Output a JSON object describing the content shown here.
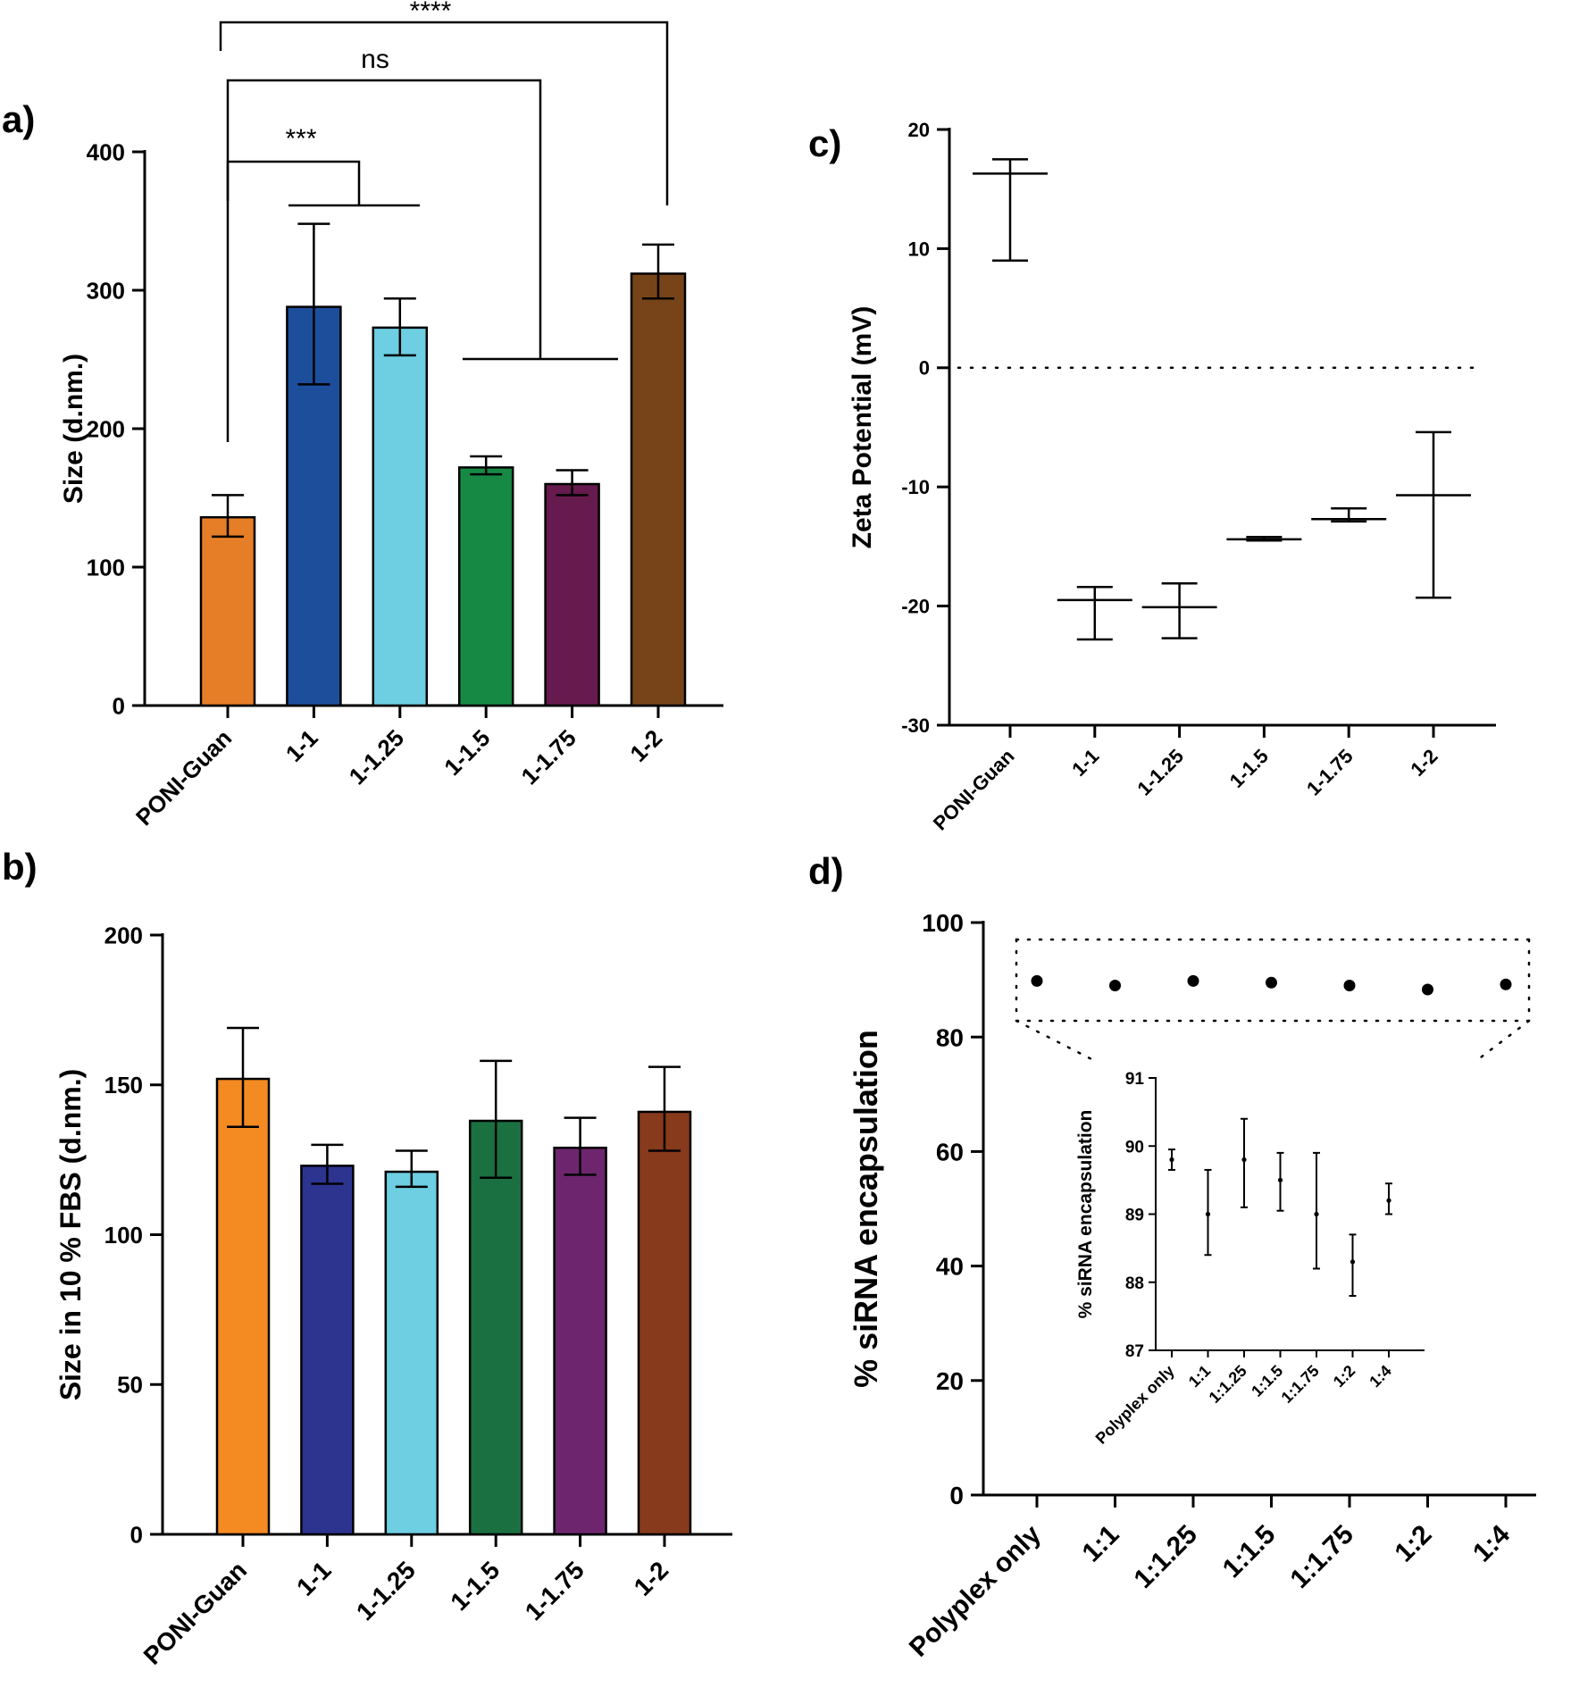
{
  "panel_labels": [
    "a)",
    "b)",
    "c)",
    "d)"
  ],
  "chart_data": [
    {
      "panel": "a)",
      "type": "bar",
      "ylabel": "Size (d.nm.)",
      "ylim": [
        0,
        400
      ],
      "yticks": [
        0,
        100,
        200,
        300,
        400
      ],
      "categories": [
        "PONI-Guan",
        "1-1",
        "1-1.25",
        "1-1.5",
        "1-1.75",
        "1-2"
      ],
      "values": [
        136,
        288,
        273,
        172,
        160,
        312
      ],
      "err_low": [
        122,
        232,
        253,
        167,
        152,
        294
      ],
      "err_high": [
        152,
        348,
        294,
        180,
        170,
        333
      ],
      "colors": [
        "#e67e28",
        "#1c4e9c",
        "#6ecee2",
        "#168a44",
        "#661a4d",
        "#774419"
      ],
      "significance": [
        {
          "label": "***"
        },
        {
          "label": "ns"
        },
        {
          "label": "****"
        }
      ]
    },
    {
      "panel": "b)",
      "type": "bar",
      "ylabel": "Size in 10 % FBS (d.nm.)",
      "ylim": [
        0,
        200
      ],
      "yticks": [
        0,
        50,
        100,
        150,
        200
      ],
      "categories": [
        "PONI-Guan",
        "1-1",
        "1-1.25",
        "1-1.5",
        "1-1.75",
        "1-2"
      ],
      "values": [
        152,
        123,
        121,
        138,
        129,
        141
      ],
      "err_low": [
        136,
        117,
        116,
        119,
        120,
        128
      ],
      "err_high": [
        169,
        130,
        128,
        158,
        139,
        156
      ],
      "colors": [
        "#f48a22",
        "#2c3490",
        "#6ecee2",
        "#1a7040",
        "#6d266e",
        "#873a1c"
      ]
    },
    {
      "panel": "c)",
      "type": "scatter",
      "ylabel": "Zeta Potential (mV)",
      "ylim": [
        -30,
        20
      ],
      "yticks": [
        -30,
        -20,
        -10,
        0,
        10,
        20
      ],
      "categories": [
        "PONI-Guan",
        "1-1",
        "1-1.25",
        "1-1.5",
        "1-1.75",
        "1-2"
      ],
      "values": [
        16.3,
        -19.5,
        -20.1,
        -14.4,
        -12.7,
        -10.7
      ],
      "err_low": [
        9.0,
        -22.8,
        -22.7,
        -14.5,
        -12.9,
        -19.3
      ],
      "err_high": [
        17.5,
        -18.4,
        -18.1,
        -14.2,
        -11.8,
        -5.4
      ],
      "zero_line": true
    },
    {
      "panel": "d)",
      "type": "scatter",
      "ylabel": "% siRNA encapsulation",
      "ylim": [
        0,
        100
      ],
      "yticks": [
        0,
        20,
        40,
        60,
        80,
        100
      ],
      "categories": [
        "Polyplex only",
        "1:1",
        "1:1.25",
        "1:1.5",
        "1:1.75",
        "1:2",
        "1:4"
      ],
      "values": [
        89.8,
        89.0,
        89.8,
        89.5,
        89.0,
        88.3,
        89.2
      ],
      "inset": {
        "ylabel": "% siRNA encapsulation",
        "ylim": [
          87,
          91
        ],
        "yticks": [
          87,
          88,
          89,
          90,
          91
        ],
        "categories": [
          "Polyplex only",
          "1:1",
          "1:1.25",
          "1:1.5",
          "1:1.75",
          "1:2",
          "1:4"
        ],
        "values": [
          89.8,
          89.0,
          89.8,
          89.5,
          89.0,
          88.3,
          89.2
        ],
        "err_low": [
          89.65,
          88.4,
          89.1,
          89.05,
          88.2,
          87.8,
          89.0
        ],
        "err_high": [
          89.95,
          89.65,
          90.4,
          89.9,
          89.9,
          88.7,
          89.45
        ]
      }
    }
  ]
}
